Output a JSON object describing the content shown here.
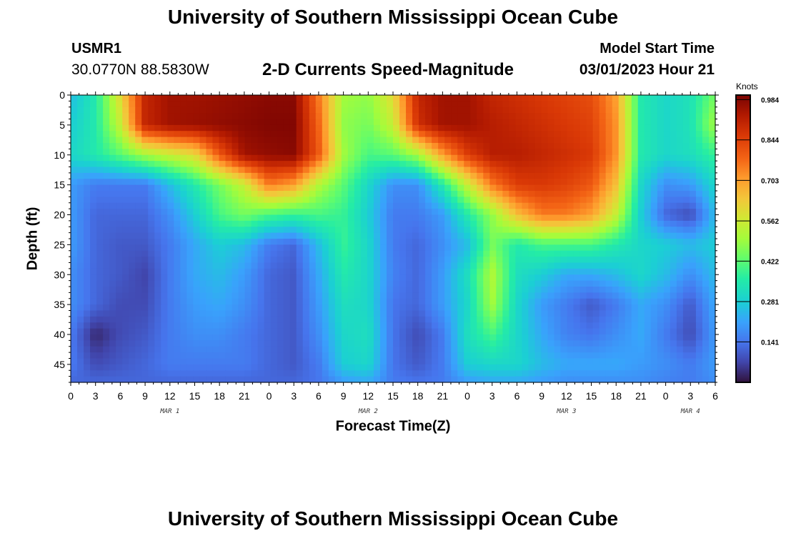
{
  "header": {
    "title": "University of Southern Mississippi Ocean Cube",
    "station_id": "USMR1",
    "coordinates": "30.0770N  88.5830W",
    "subtitle": "2-D Currents Speed-Magnitude",
    "model_start_label": "Model Start Time",
    "model_start_time": "03/01/2023 Hour 21"
  },
  "footer": {
    "title": "University of Southern Mississippi Ocean Cube"
  },
  "colorbar": {
    "unit": "Knots",
    "ticks": [
      0.141,
      0.281,
      0.422,
      0.562,
      0.703,
      0.844,
      0.984
    ],
    "range": [
      0.0,
      1.0
    ]
  },
  "chart_data": {
    "type": "heatmap",
    "title": "2-D Currents Speed-Magnitude",
    "xlabel": "Forecast Time(Z)",
    "ylabel": "Depth (ft)",
    "x_hours_range": [
      0,
      78
    ],
    "x_tick_labels": [
      "0",
      "3",
      "6",
      "9",
      "12",
      "15",
      "18",
      "21",
      "0",
      "3",
      "6",
      "9",
      "12",
      "15",
      "18",
      "21",
      "0",
      "3",
      "6",
      "9",
      "12",
      "15",
      "18",
      "21",
      "0",
      "3",
      "6"
    ],
    "date_labels": [
      {
        "label": "MAR 1",
        "hour": 12
      },
      {
        "label": "MAR 2",
        "hour": 36
      },
      {
        "label": "MAR 3",
        "hour": 60
      },
      {
        "label": "MAR 4",
        "hour": 75
      }
    ],
    "ylim": [
      0,
      48
    ],
    "y_ticks": [
      0,
      5,
      10,
      15,
      20,
      25,
      30,
      35,
      40,
      45
    ],
    "depths": [
      0,
      5,
      10,
      15,
      20,
      25,
      30,
      35,
      40,
      45,
      48
    ],
    "hours": [
      0,
      3,
      6,
      9,
      12,
      15,
      18,
      21,
      24,
      27,
      30,
      33,
      36,
      39,
      42,
      45,
      48,
      51,
      54,
      57,
      60,
      63,
      66,
      69,
      72,
      75,
      78
    ],
    "values": [
      [
        0.25,
        0.35,
        0.6,
        0.9,
        0.95,
        0.95,
        0.96,
        0.97,
        0.98,
        0.98,
        0.75,
        0.5,
        0.48,
        0.6,
        0.9,
        0.95,
        0.95,
        0.9,
        0.88,
        0.86,
        0.84,
        0.82,
        0.7,
        0.35,
        0.3,
        0.33,
        0.45
      ],
      [
        0.28,
        0.35,
        0.55,
        0.9,
        0.95,
        0.96,
        0.97,
        0.98,
        0.99,
        0.99,
        0.78,
        0.48,
        0.45,
        0.55,
        0.88,
        0.95,
        0.95,
        0.92,
        0.9,
        0.88,
        0.86,
        0.84,
        0.72,
        0.35,
        0.3,
        0.33,
        0.5
      ],
      [
        0.3,
        0.35,
        0.42,
        0.5,
        0.55,
        0.6,
        0.8,
        0.95,
        0.97,
        0.98,
        0.8,
        0.5,
        0.4,
        0.42,
        0.5,
        0.7,
        0.85,
        0.92,
        0.92,
        0.9,
        0.88,
        0.86,
        0.72,
        0.35,
        0.3,
        0.32,
        0.38
      ],
      [
        0.2,
        0.15,
        0.15,
        0.15,
        0.25,
        0.35,
        0.45,
        0.55,
        0.75,
        0.7,
        0.52,
        0.42,
        0.3,
        0.18,
        0.18,
        0.35,
        0.55,
        0.75,
        0.85,
        0.86,
        0.84,
        0.8,
        0.65,
        0.3,
        0.18,
        0.2,
        0.3
      ],
      [
        0.2,
        0.12,
        0.12,
        0.12,
        0.18,
        0.28,
        0.4,
        0.45,
        0.4,
        0.38,
        0.4,
        0.38,
        0.28,
        0.15,
        0.15,
        0.2,
        0.35,
        0.48,
        0.65,
        0.75,
        0.75,
        0.7,
        0.55,
        0.28,
        0.12,
        0.08,
        0.25
      ],
      [
        0.2,
        0.12,
        0.1,
        0.1,
        0.15,
        0.22,
        0.28,
        0.25,
        0.15,
        0.12,
        0.25,
        0.38,
        0.3,
        0.15,
        0.12,
        0.18,
        0.25,
        0.45,
        0.35,
        0.4,
        0.4,
        0.4,
        0.35,
        0.3,
        0.28,
        0.25,
        0.28
      ],
      [
        0.18,
        0.12,
        0.1,
        0.07,
        0.15,
        0.22,
        0.25,
        0.2,
        0.12,
        0.1,
        0.22,
        0.35,
        0.3,
        0.16,
        0.12,
        0.2,
        0.32,
        0.52,
        0.32,
        0.28,
        0.22,
        0.22,
        0.25,
        0.3,
        0.25,
        0.18,
        0.25
      ],
      [
        0.18,
        0.12,
        0.08,
        0.08,
        0.15,
        0.2,
        0.22,
        0.18,
        0.12,
        0.1,
        0.2,
        0.32,
        0.3,
        0.14,
        0.12,
        0.2,
        0.3,
        0.5,
        0.3,
        0.2,
        0.15,
        0.1,
        0.15,
        0.22,
        0.18,
        0.1,
        0.22
      ],
      [
        0.15,
        0.03,
        0.08,
        0.1,
        0.15,
        0.18,
        0.18,
        0.15,
        0.12,
        0.1,
        0.18,
        0.3,
        0.32,
        0.14,
        0.08,
        0.15,
        0.32,
        0.4,
        0.3,
        0.22,
        0.16,
        0.14,
        0.18,
        0.22,
        0.15,
        0.08,
        0.2
      ],
      [
        0.15,
        0.08,
        0.1,
        0.12,
        0.15,
        0.15,
        0.15,
        0.15,
        0.12,
        0.1,
        0.15,
        0.28,
        0.3,
        0.14,
        0.1,
        0.15,
        0.28,
        0.3,
        0.3,
        0.25,
        0.22,
        0.22,
        0.22,
        0.2,
        0.18,
        0.15,
        0.2
      ],
      [
        0.12,
        0.12,
        0.12,
        0.12,
        0.12,
        0.12,
        0.12,
        0.12,
        0.12,
        0.12,
        0.14,
        0.2,
        0.22,
        0.15,
        0.14,
        0.15,
        0.2,
        0.22,
        0.22,
        0.2,
        0.18,
        0.18,
        0.18,
        0.18,
        0.16,
        0.15,
        0.18
      ]
    ]
  }
}
